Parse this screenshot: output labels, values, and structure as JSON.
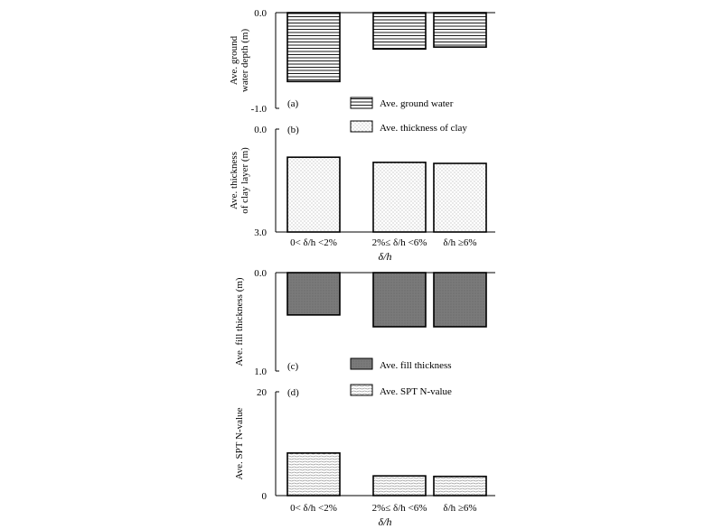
{
  "x_axis_label": "δ/h",
  "categories": [
    "0< δ/h <2%",
    "2%≤ δ/h <6%",
    "δ/h ≥6%"
  ],
  "chart_data": [
    {
      "type": "bar",
      "panel": "(a)",
      "ylabel_lines": [
        "Ave. ground",
        "water depth (m)"
      ],
      "ylim": [
        0.0,
        -1.0
      ],
      "y_ticks": [
        "0.0",
        "-1.0"
      ],
      "inverted": true,
      "series": [
        {
          "name": "Ave. ground water",
          "values": [
            -0.72,
            -0.38,
            -0.36
          ]
        }
      ],
      "fill": "hlines",
      "legend": "Ave. ground water"
    },
    {
      "type": "bar",
      "panel": "(b)",
      "ylabel_lines": [
        "Ave. thickness",
        "of clay layer (m)"
      ],
      "ylim": [
        0.0,
        3.0
      ],
      "y_ticks": [
        "0.0",
        "3.0"
      ],
      "inverted": false,
      "series": [
        {
          "name": "Ave. thickness of clay",
          "values": [
            2.18,
            2.03,
            2.0
          ]
        }
      ],
      "fill": "dots",
      "legend": "Ave. thickness of clay"
    },
    {
      "type": "bar",
      "panel": "(c)",
      "ylabel_lines": [
        "Ave. fill thickness (m)"
      ],
      "ylim": [
        0.0,
        1.0
      ],
      "y_ticks": [
        "0.0",
        "1.0"
      ],
      "inverted": true,
      "series": [
        {
          "name": "Ave. fill thickness",
          "values": [
            0.43,
            0.55,
            0.55
          ]
        }
      ],
      "fill": "gray",
      "legend": "Ave. fill thickness"
    },
    {
      "type": "bar",
      "panel": "(d)",
      "ylabel_lines": [
        "Ave. SPT N-value"
      ],
      "ylim": [
        0,
        20
      ],
      "y_ticks": [
        "20",
        "0"
      ],
      "inverted": false,
      "series": [
        {
          "name": "Ave. SPT N-value",
          "values": [
            8.2,
            3.8,
            3.7
          ]
        }
      ],
      "fill": "waves",
      "legend": "Ave. SPT N-value"
    }
  ]
}
